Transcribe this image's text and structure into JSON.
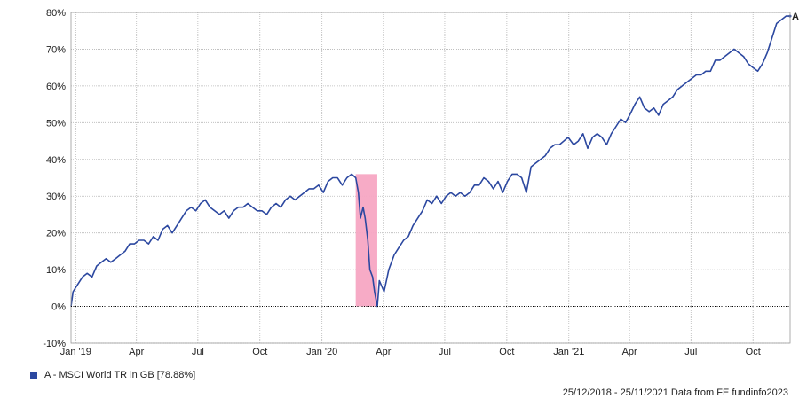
{
  "chart_data": {
    "type": "line",
    "title": "",
    "xlabel": "",
    "ylabel": "",
    "ylim": [
      -10,
      80
    ],
    "y_ticks": [
      -10,
      0,
      10,
      20,
      30,
      40,
      50,
      60,
      70,
      80
    ],
    "y_tick_labels": [
      "-10%",
      "0%",
      "10%",
      "20%",
      "30%",
      "40%",
      "50%",
      "60%",
      "70%",
      "80%"
    ],
    "xlim": [
      "2018-12-25",
      "2021-11-25"
    ],
    "x_ticks": [
      {
        "date": "2019-01-01",
        "label": "Jan '19"
      },
      {
        "date": "2019-04-01",
        "label": "Apr"
      },
      {
        "date": "2019-07-01",
        "label": "Jul"
      },
      {
        "date": "2019-10-01",
        "label": "Oct"
      },
      {
        "date": "2020-01-01",
        "label": "Jan '20"
      },
      {
        "date": "2020-04-01",
        "label": "Apr"
      },
      {
        "date": "2020-07-01",
        "label": "Jul"
      },
      {
        "date": "2020-10-01",
        "label": "Oct"
      },
      {
        "date": "2021-01-01",
        "label": "Jan '21"
      },
      {
        "date": "2021-04-01",
        "label": "Apr"
      },
      {
        "date": "2021-07-01",
        "label": "Jul"
      },
      {
        "date": "2021-10-01",
        "label": "Oct"
      }
    ],
    "grid": true,
    "zero_line": true,
    "highlight_region": {
      "start": "2020-02-20",
      "end": "2020-03-23",
      "ymin": 0,
      "ymax": 36,
      "color": "#f7a6c3"
    },
    "series": [
      {
        "name": "A - MSCI World TR in GB [78.88%]",
        "end_marker": "A",
        "color": "#2c48a0",
        "x": [
          "2018-12-25",
          "2018-12-28",
          "2019-01-04",
          "2019-01-11",
          "2019-01-18",
          "2019-01-25",
          "2019-02-01",
          "2019-02-08",
          "2019-02-15",
          "2019-02-22",
          "2019-03-01",
          "2019-03-08",
          "2019-03-15",
          "2019-03-22",
          "2019-03-29",
          "2019-04-05",
          "2019-04-12",
          "2019-04-19",
          "2019-04-26",
          "2019-05-03",
          "2019-05-10",
          "2019-05-17",
          "2019-05-24",
          "2019-05-31",
          "2019-06-07",
          "2019-06-14",
          "2019-06-21",
          "2019-06-28",
          "2019-07-05",
          "2019-07-12",
          "2019-07-19",
          "2019-07-26",
          "2019-08-02",
          "2019-08-09",
          "2019-08-16",
          "2019-08-23",
          "2019-08-30",
          "2019-09-06",
          "2019-09-13",
          "2019-09-20",
          "2019-09-27",
          "2019-10-04",
          "2019-10-11",
          "2019-10-18",
          "2019-10-25",
          "2019-11-01",
          "2019-11-08",
          "2019-11-15",
          "2019-11-22",
          "2019-11-29",
          "2019-12-06",
          "2019-12-13",
          "2019-12-20",
          "2019-12-27",
          "2020-01-03",
          "2020-01-10",
          "2020-01-17",
          "2020-01-24",
          "2020-01-31",
          "2020-02-07",
          "2020-02-14",
          "2020-02-20",
          "2020-02-24",
          "2020-02-27",
          "2020-03-02",
          "2020-03-05",
          "2020-03-09",
          "2020-03-12",
          "2020-03-16",
          "2020-03-19",
          "2020-03-23",
          "2020-03-26",
          "2020-04-02",
          "2020-04-09",
          "2020-04-17",
          "2020-04-24",
          "2020-05-01",
          "2020-05-08",
          "2020-05-15",
          "2020-05-22",
          "2020-05-29",
          "2020-06-05",
          "2020-06-12",
          "2020-06-19",
          "2020-06-26",
          "2020-07-03",
          "2020-07-10",
          "2020-07-17",
          "2020-07-24",
          "2020-07-31",
          "2020-08-07",
          "2020-08-14",
          "2020-08-21",
          "2020-08-28",
          "2020-09-04",
          "2020-09-11",
          "2020-09-18",
          "2020-09-25",
          "2020-10-02",
          "2020-10-09",
          "2020-10-16",
          "2020-10-23",
          "2020-10-30",
          "2020-11-06",
          "2020-11-13",
          "2020-11-20",
          "2020-11-27",
          "2020-12-04",
          "2020-12-11",
          "2020-12-18",
          "2020-12-31",
          "2021-01-08",
          "2021-01-15",
          "2021-01-22",
          "2021-01-29",
          "2021-02-05",
          "2021-02-12",
          "2021-02-19",
          "2021-02-26",
          "2021-03-05",
          "2021-03-12",
          "2021-03-19",
          "2021-03-26",
          "2021-04-01",
          "2021-04-09",
          "2021-04-16",
          "2021-04-23",
          "2021-04-30",
          "2021-05-07",
          "2021-05-14",
          "2021-05-21",
          "2021-05-28",
          "2021-06-04",
          "2021-06-11",
          "2021-06-18",
          "2021-06-25",
          "2021-07-02",
          "2021-07-09",
          "2021-07-16",
          "2021-07-23",
          "2021-07-30",
          "2021-08-06",
          "2021-08-13",
          "2021-08-20",
          "2021-08-27",
          "2021-09-03",
          "2021-09-10",
          "2021-09-17",
          "2021-09-24",
          "2021-10-01",
          "2021-10-08",
          "2021-10-15",
          "2021-10-22",
          "2021-10-29",
          "2021-11-05",
          "2021-11-12",
          "2021-11-19",
          "2021-11-25"
        ],
        "values": [
          0,
          4,
          6,
          8,
          9,
          8,
          11,
          12,
          13,
          12,
          13,
          14,
          15,
          17,
          17,
          18,
          18,
          17,
          19,
          18,
          21,
          22,
          20,
          22,
          24,
          26,
          27,
          26,
          28,
          29,
          27,
          26,
          25,
          26,
          24,
          26,
          27,
          27,
          28,
          27,
          26,
          26,
          25,
          27,
          28,
          27,
          29,
          30,
          29,
          30,
          31,
          32,
          32,
          33,
          31,
          34,
          35,
          35,
          33,
          35,
          36,
          35,
          31,
          24,
          27,
          24,
          18,
          10,
          8,
          4,
          0,
          7,
          4,
          10,
          14,
          16,
          18,
          19,
          22,
          24,
          26,
          29,
          28,
          30,
          28,
          30,
          31,
          30,
          31,
          30,
          31,
          33,
          33,
          35,
          34,
          32,
          34,
          31,
          34,
          36,
          36,
          35,
          31,
          38,
          39,
          40,
          41,
          43,
          44,
          44,
          46,
          44,
          45,
          47,
          43,
          46,
          47,
          46,
          44,
          47,
          49,
          51,
          50,
          52,
          55,
          57,
          54,
          53,
          54,
          52,
          55,
          56,
          57,
          59,
          60,
          61,
          62,
          63,
          63,
          64,
          64,
          67,
          67,
          68,
          69,
          70,
          69,
          68,
          66,
          65,
          64,
          66,
          69,
          73,
          77,
          78,
          79,
          79
        ]
      }
    ]
  },
  "legend": {
    "label": "A - MSCI World TR in GB [78.88%]",
    "swatch_color": "#2c48a0"
  },
  "footer": {
    "text": "25/12/2018 - 25/11/2021 Data from FE fundinfo2023"
  }
}
